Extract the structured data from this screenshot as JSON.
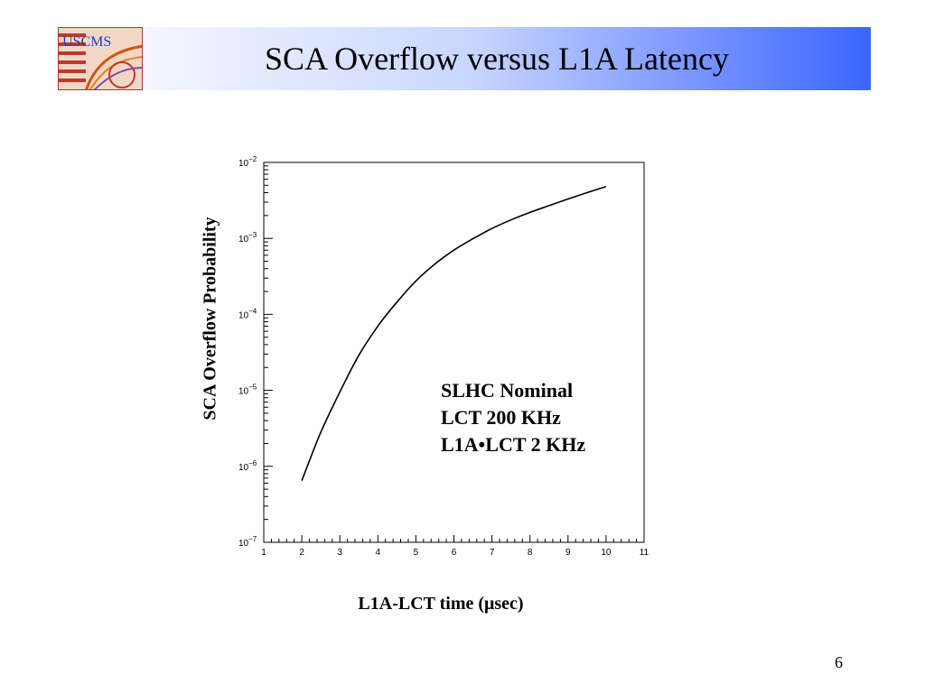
{
  "slide": {
    "title": "SCA Overflow versus L1A Latency",
    "page_number": "6",
    "logo_text": "USCMS"
  },
  "chart_data": {
    "type": "line",
    "ylabel": "SCA Overflow Probability",
    "xlabel": "L1A-LCT time (μsec)",
    "xlim": [
      1,
      11
    ],
    "ylim": [
      1e-07,
      0.01
    ],
    "yscale": "log",
    "grid": false,
    "x_ticks": [
      "1",
      "2",
      "3",
      "4",
      "5",
      "6",
      "7",
      "8",
      "9",
      "10",
      "11"
    ],
    "y_tick_mantissa": "10",
    "y_tick_exponents": [
      "−2",
      "−3",
      "−4",
      "−5",
      "−6",
      "−7"
    ],
    "annotation": [
      "SLHC Nominal",
      "LCT 200 KHz",
      "L1A•LCT 2 KHz"
    ],
    "series": [
      {
        "x": [
          2,
          2.5,
          3,
          3.5,
          4,
          4.5,
          5,
          5.5,
          6,
          6.5,
          7,
          7.5,
          8,
          8.5,
          9,
          9.5,
          10
        ],
        "y": [
          6.5e-07,
          2.8e-06,
          9.5e-06,
          2.9e-05,
          7e-05,
          0.000145,
          0.000275,
          0.00046,
          0.0007,
          0.00099,
          0.00135,
          0.00175,
          0.0022,
          0.0027,
          0.0033,
          0.004,
          0.0048
        ]
      }
    ]
  }
}
